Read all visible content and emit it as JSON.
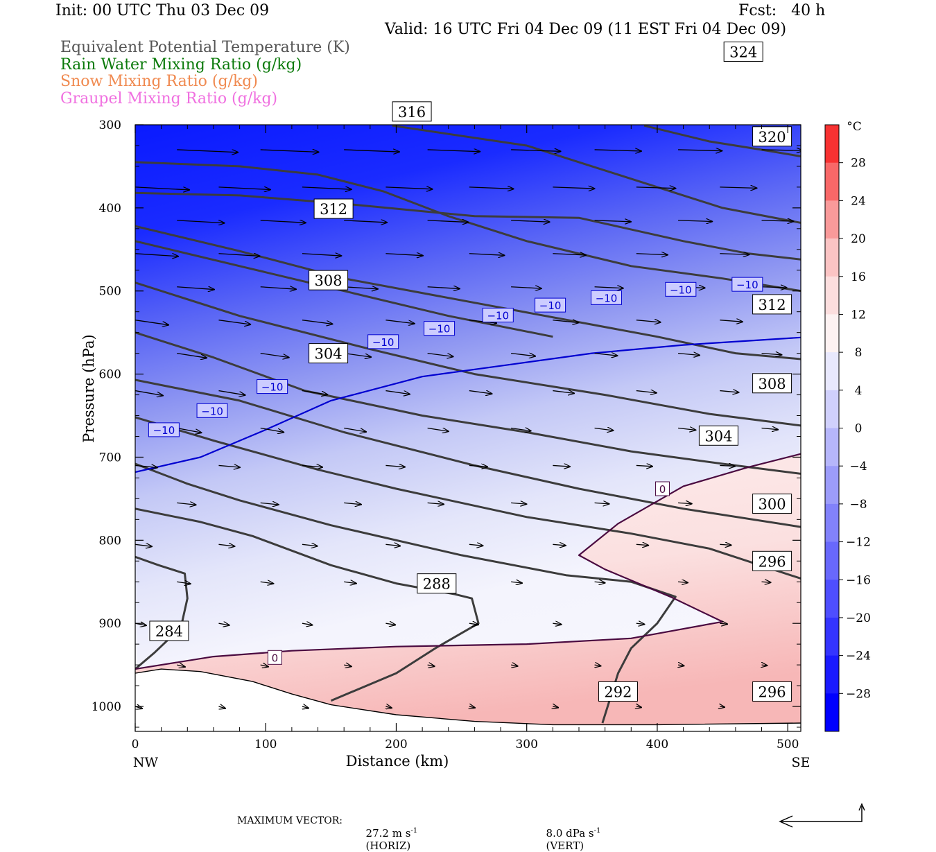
{
  "header": {
    "init": "Init: 00 UTC Thu 03 Dec 09",
    "fcst": "Fcst:   40 h",
    "valid": "Valid: 16 UTC Fri 04 Dec 09 (11 EST Fri 04 Dec 09)",
    "fields": [
      {
        "label": "Equivalent Potential Temperature (K)",
        "color": "#555555"
      },
      {
        "label": "Rain Water Mixing Ratio (g/kg)",
        "color": "#0a7a0a"
      },
      {
        "label": "Snow Mixing Ratio (g/kg)",
        "color": "#f08a50"
      },
      {
        "label": "Graupel Mixing Ratio (g/kg)",
        "color": "#f070e0"
      }
    ]
  },
  "chart_data": {
    "type": "cross-section",
    "xlabel": "Distance (km)",
    "ylabel": "Pressure (hPa)",
    "xlim": [
      0,
      510
    ],
    "ylim": [
      1030,
      300
    ],
    "x_ticks": [
      0,
      100,
      200,
      300,
      400,
      500
    ],
    "y_ticks": [
      300,
      400,
      500,
      600,
      700,
      800,
      900,
      1000
    ],
    "x_end_labels": {
      "left": "NW",
      "right": "SE"
    },
    "colorbar": {
      "unit": "°C",
      "range": [
        -32,
        32
      ],
      "tick_labels": [
        28,
        24,
        20,
        16,
        12,
        8,
        4,
        0,
        -4,
        -8,
        -12,
        -16,
        -20,
        -24,
        -28
      ]
    },
    "theta_e_contours": [
      {
        "value": 284,
        "points": [
          [
            0,
            820
          ],
          [
            18,
            830
          ],
          [
            38,
            840
          ],
          [
            40,
            870
          ],
          [
            35,
            905
          ],
          [
            15,
            935
          ],
          [
            0,
            955
          ]
        ]
      },
      {
        "value": 288,
        "points": [
          [
            0,
            762
          ],
          [
            50,
            778
          ],
          [
            90,
            795
          ],
          [
            150,
            830
          ],
          [
            200,
            852
          ],
          [
            245,
            865
          ],
          [
            258,
            870
          ],
          [
            263,
            900
          ],
          [
            230,
            930
          ],
          [
            200,
            960
          ],
          [
            150,
            993
          ]
        ]
      },
      {
        "value": 292,
        "points": [
          [
            0,
            708
          ],
          [
            40,
            732
          ],
          [
            80,
            752
          ],
          [
            150,
            782
          ],
          [
            250,
            818
          ],
          [
            330,
            842
          ],
          [
            380,
            850
          ],
          [
            414,
            868
          ],
          [
            400,
            900
          ],
          [
            380,
            930
          ],
          [
            370,
            960
          ],
          [
            358,
            1020
          ]
        ]
      },
      {
        "value": 296,
        "points": [
          [
            0,
            652
          ],
          [
            60,
            680
          ],
          [
            140,
            715
          ],
          [
            200,
            738
          ],
          [
            300,
            772
          ],
          [
            380,
            792
          ],
          [
            440,
            810
          ],
          [
            510,
            846
          ]
        ]
      },
      {
        "value": 300,
        "points": [
          [
            0,
            607
          ],
          [
            80,
            632
          ],
          [
            160,
            670
          ],
          [
            260,
            710
          ],
          [
            340,
            738
          ],
          [
            420,
            762
          ],
          [
            510,
            784
          ]
        ]
      },
      {
        "value": 304,
        "points": [
          [
            0,
            550
          ],
          [
            60,
            580
          ],
          [
            130,
            620
          ],
          [
            220,
            650
          ],
          [
            300,
            670
          ],
          [
            380,
            693
          ],
          [
            450,
            708
          ],
          [
            510,
            720
          ]
        ]
      },
      {
        "value": 308,
        "points": [
          [
            0,
            490
          ],
          [
            80,
            530
          ],
          [
            180,
            570
          ],
          [
            260,
            600
          ],
          [
            360,
            625
          ],
          [
            440,
            648
          ],
          [
            510,
            662
          ]
        ]
      },
      {
        "value": 312,
        "points": [
          [
            0,
            422
          ],
          [
            80,
            452
          ],
          [
            160,
            485
          ],
          [
            280,
            520
          ],
          [
            400,
            555
          ],
          [
            460,
            575
          ],
          [
            510,
            582
          ]
        ]
      },
      {
        "value": 312,
        "points": [
          [
            0,
            440
          ],
          [
            80,
            470
          ],
          [
            160,
            500
          ],
          [
            240,
            530
          ],
          [
            320,
            555
          ]
        ]
      },
      {
        "value": 316,
        "points": [
          [
            0,
            345
          ],
          [
            80,
            350
          ],
          [
            140,
            360
          ],
          [
            190,
            380
          ],
          [
            240,
            410
          ],
          [
            300,
            440
          ],
          [
            380,
            470
          ],
          [
            450,
            485
          ],
          [
            510,
            500
          ]
        ]
      },
      {
        "value": 320,
        "points": [
          [
            0,
            382
          ],
          [
            80,
            385
          ],
          [
            160,
            395
          ],
          [
            260,
            410
          ],
          [
            340,
            412
          ],
          [
            420,
            440
          ],
          [
            470,
            455
          ],
          [
            510,
            462
          ]
        ]
      },
      {
        "value": 324,
        "points": [
          [
            197,
            301
          ],
          [
            300,
            325
          ],
          [
            350,
            350
          ],
          [
            420,
            385
          ],
          [
            450,
            400
          ],
          [
            510,
            418
          ]
        ]
      },
      {
        "value": 324,
        "points": [
          [
            390,
            301
          ],
          [
            440,
            320
          ],
          [
            480,
            330
          ],
          [
            510,
            338
          ]
        ]
      }
    ],
    "temperature_contours": [
      {
        "value": -10,
        "color": "#0000d0",
        "points": [
          [
            0,
            718
          ],
          [
            50,
            700
          ],
          [
            100,
            667
          ],
          [
            150,
            632
          ],
          [
            220,
            603
          ],
          [
            290,
            588
          ],
          [
            350,
            575
          ],
          [
            420,
            565
          ],
          [
            510,
            556
          ]
        ]
      },
      {
        "value": 0,
        "color": "#4a0a40",
        "points": [
          [
            0,
            955
          ],
          [
            60,
            940
          ],
          [
            120,
            933
          ],
          [
            200,
            928
          ],
          [
            300,
            925
          ],
          [
            380,
            918
          ],
          [
            450,
            898
          ],
          [
            410,
            868
          ],
          [
            360,
            835
          ],
          [
            340,
            818
          ],
          [
            370,
            780
          ],
          [
            420,
            735
          ],
          [
            470,
            712
          ],
          [
            510,
            696
          ]
        ]
      }
    ],
    "contour_labels": [
      {
        "text": "284",
        "x": 26,
        "y": 909
      },
      {
        "text": "288",
        "x": 231,
        "y": 852
      },
      {
        "text": "292",
        "x": 370,
        "y": 982
      },
      {
        "text": "296",
        "x": 488,
        "y": 982
      },
      {
        "text": "296",
        "x": 488,
        "y": 825
      },
      {
        "text": "300",
        "x": 488,
        "y": 756
      },
      {
        "text": "304",
        "x": 447,
        "y": 674
      },
      {
        "text": "304",
        "x": 148,
        "y": 575
      },
      {
        "text": "308",
        "x": 488,
        "y": 611
      },
      {
        "text": "308",
        "x": 148,
        "y": 487
      },
      {
        "text": "312",
        "x": 488,
        "y": 516
      },
      {
        "text": "312",
        "x": 152,
        "y": 401
      },
      {
        "text": "316",
        "x": 212,
        "y": 284
      },
      {
        "text": "320",
        "x": 488,
        "y": 314
      },
      {
        "text": "324",
        "x": 466,
        "y": 212
      }
    ],
    "temp_labels": [
      {
        "text": "−10",
        "x": 22,
        "y": 667
      },
      {
        "text": "−10",
        "x": 59,
        "y": 644
      },
      {
        "text": "−10",
        "x": 105,
        "y": 615
      },
      {
        "text": "−10",
        "x": 190,
        "y": 561
      },
      {
        "text": "−10",
        "x": 233,
        "y": 545
      },
      {
        "text": "−10",
        "x": 278,
        "y": 529
      },
      {
        "text": "−10",
        "x": 318,
        "y": 517
      },
      {
        "text": "−10",
        "x": 361,
        "y": 508
      },
      {
        "text": "−10",
        "x": 418,
        "y": 498
      },
      {
        "text": "−10",
        "x": 469,
        "y": 492
      },
      {
        "text": "0",
        "x": 107,
        "y": 941
      },
      {
        "text": "0",
        "x": 404,
        "y": 738
      }
    ],
    "wind_vectors_note": "horizontal/vertical circulation vectors"
  },
  "footer": {
    "max_vector_label": "MAXIMUM VECTOR:",
    "horiz_value": "27.2 m s",
    "horiz_unit": "(HORIZ)",
    "vert_value": "8.0 dPa s",
    "vert_unit": "(VERT)",
    "exponent": "-1"
  }
}
